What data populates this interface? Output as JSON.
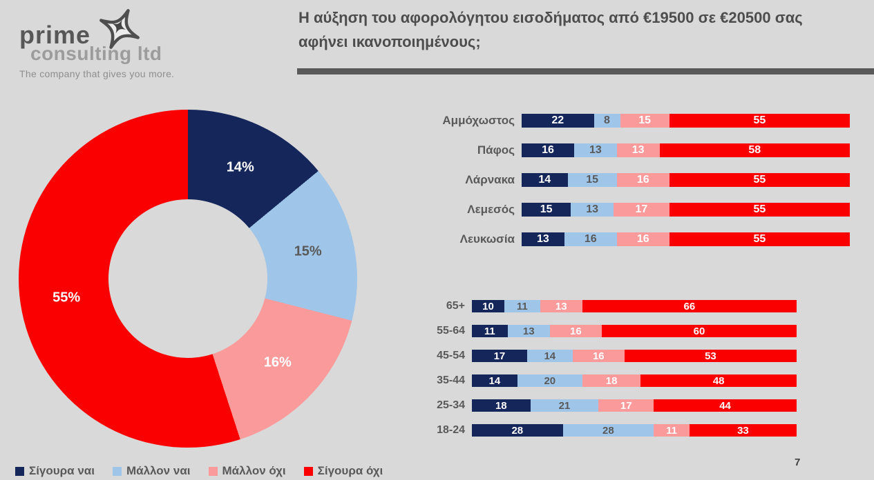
{
  "logo": {
    "name_line1": "prime",
    "name_line2": "consulting ltd",
    "tagline": "The company that gives you more.",
    "star_icon": "four-point-star"
  },
  "header": {
    "title_line1": "Η αύξηση του αφορολόγητου εισοδήματος από €19500 σε €20500 σας",
    "title_line2": "αφήνει ικανοποιημένους;"
  },
  "palette": {
    "background": "#D9D9D9",
    "text_gray": "#595959",
    "divider_gray": "#595959",
    "navy": "#15265B",
    "light_blue": "#9FC5E8",
    "pink": "#FA9A9A",
    "red": "#FA0000"
  },
  "legend": {
    "items": [
      {
        "label": "Σίγουρα ναι",
        "color": "#15265B"
      },
      {
        "label": "Μάλλον ναι",
        "color": "#9FC5E8"
      },
      {
        "label": "Μάλλον όχι",
        "color": "#FA9A9A"
      },
      {
        "label": "Σίγουρα όχι",
        "color": "#FA0000"
      }
    ]
  },
  "chart_data": [
    {
      "type": "pie",
      "subtype": "donut",
      "series_labels": [
        "Σίγουρα ναι",
        "Μάλλον ναι",
        "Μάλλον όχι",
        "Σίγουρα όχι"
      ],
      "values": [
        14,
        15,
        16,
        55
      ],
      "labels": [
        "14%",
        "15%",
        "16%",
        "55%"
      ],
      "series_colors": [
        "#15265B",
        "#9FC5E8",
        "#FA9A9A",
        "#FA0000"
      ],
      "label_colors": [
        "#FFFFFF",
        "#595959",
        "#FFFFFF",
        "#FFFFFF"
      ],
      "start_angle_deg": 0,
      "direction": "clockwise"
    },
    {
      "type": "bar",
      "subtype": "stacked-horizontal",
      "categories": [
        "Αμμόχωστος",
        "Πάφος",
        "Λάρνακα",
        "Λεμεσός",
        "Λευκωσία"
      ],
      "series": [
        {
          "name": "Σίγουρα ναι",
          "values": [
            22,
            16,
            14,
            15,
            13
          ]
        },
        {
          "name": "Μάλλον ναι",
          "values": [
            8,
            13,
            15,
            13,
            16
          ]
        },
        {
          "name": "Μάλλον όχι",
          "values": [
            15,
            13,
            16,
            17,
            16
          ]
        },
        {
          "name": "Σίγουρα όχι",
          "values": [
            55,
            58,
            55,
            55,
            55
          ]
        }
      ],
      "series_colors": [
        "#15265B",
        "#9FC5E8",
        "#FA9A9A",
        "#FA0000"
      ],
      "value_text_colors": [
        "#FFFFFF",
        "#595959",
        "#FFFFFF",
        "#FFFFFF"
      ],
      "xlim": [
        0,
        100
      ],
      "grid": false,
      "value_labels": "inside-center"
    },
    {
      "type": "bar",
      "subtype": "stacked-horizontal",
      "categories": [
        "65+",
        "55-64",
        "45-54",
        "35-44",
        "25-34",
        "18-24"
      ],
      "series": [
        {
          "name": "Σίγουρα ναι",
          "values": [
            10,
            11,
            17,
            14,
            18,
            28
          ]
        },
        {
          "name": "Μάλλον ναι",
          "values": [
            11,
            13,
            14,
            20,
            21,
            28
          ]
        },
        {
          "name": "Μάλλον όχι",
          "values": [
            13,
            16,
            16,
            18,
            17,
            11
          ]
        },
        {
          "name": "Σίγουρα όχι",
          "values": [
            66,
            60,
            53,
            48,
            44,
            33
          ]
        }
      ],
      "series_colors": [
        "#15265B",
        "#9FC5E8",
        "#FA9A9A",
        "#FA0000"
      ],
      "value_text_colors": [
        "#FFFFFF",
        "#595959",
        "#FFFFFF",
        "#FFFFFF"
      ],
      "xlim": [
        0,
        100
      ],
      "grid": false,
      "value_labels": "inside-center"
    }
  ],
  "footer": {
    "page_number": "7"
  }
}
